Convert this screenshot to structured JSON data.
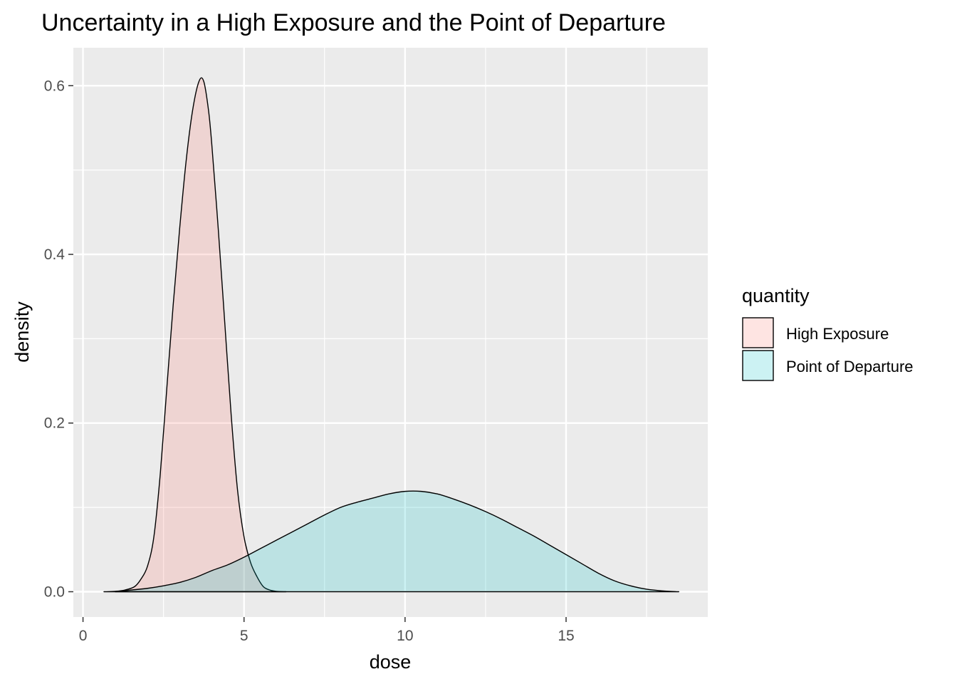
{
  "chart_data": {
    "type": "area",
    "title": "Uncertainty in a High Exposure and the Point of Departure",
    "xlabel": "dose",
    "ylabel": "density",
    "xlim": [
      -0.3,
      19.4
    ],
    "ylim": [
      -0.03,
      0.645
    ],
    "x_ticks": [
      0,
      5,
      10,
      15
    ],
    "x_tick_labels": [
      "0",
      "5",
      "10",
      "15"
    ],
    "y_ticks": [
      0.0,
      0.2,
      0.4,
      0.6
    ],
    "y_tick_labels": [
      "0.0",
      "0.2",
      "0.4",
      "0.6"
    ],
    "grid": true,
    "background": "#ebebeb",
    "legend": {
      "title": "quantity",
      "position": "right",
      "entries": [
        "High Exposure",
        "Point of Departure"
      ]
    },
    "series": [
      {
        "name": "High Exposure",
        "fill": "#f8766d",
        "fill_opacity": 0.2,
        "x": [
          0.65,
          1.0,
          1.3,
          1.6,
          1.8,
          2.0,
          2.2,
          2.4,
          2.6,
          2.8,
          3.0,
          3.2,
          3.4,
          3.6,
          3.75,
          3.9,
          4.0,
          4.2,
          4.4,
          4.6,
          4.8,
          5.0,
          5.2,
          5.4,
          5.6,
          5.8,
          6.0,
          6.3
        ],
        "y": [
          0.0,
          0.0005,
          0.002,
          0.006,
          0.015,
          0.03,
          0.065,
          0.14,
          0.24,
          0.34,
          0.43,
          0.51,
          0.57,
          0.605,
          0.605,
          0.57,
          0.53,
          0.43,
          0.32,
          0.21,
          0.12,
          0.065,
          0.035,
          0.018,
          0.006,
          0.002,
          0.0005,
          0.0
        ]
      },
      {
        "name": "Point of Departure",
        "fill": "#00bfc4",
        "fill_opacity": 0.2,
        "x": [
          1.0,
          1.5,
          2.0,
          2.5,
          3.0,
          3.5,
          4.0,
          4.5,
          5.0,
          5.5,
          6.0,
          6.5,
          7.0,
          7.5,
          8.0,
          8.5,
          9.0,
          9.5,
          10.0,
          10.5,
          11.0,
          11.5,
          12.0,
          12.5,
          13.0,
          13.5,
          14.0,
          14.5,
          15.0,
          15.5,
          16.0,
          16.5,
          17.0,
          17.5,
          18.0,
          18.5
        ],
        "y": [
          0.0,
          0.002,
          0.004,
          0.007,
          0.011,
          0.017,
          0.025,
          0.032,
          0.041,
          0.051,
          0.061,
          0.071,
          0.081,
          0.091,
          0.1,
          0.106,
          0.111,
          0.116,
          0.119,
          0.119,
          0.116,
          0.11,
          0.103,
          0.095,
          0.086,
          0.076,
          0.066,
          0.055,
          0.044,
          0.033,
          0.022,
          0.013,
          0.007,
          0.003,
          0.001,
          0.0
        ]
      }
    ]
  }
}
